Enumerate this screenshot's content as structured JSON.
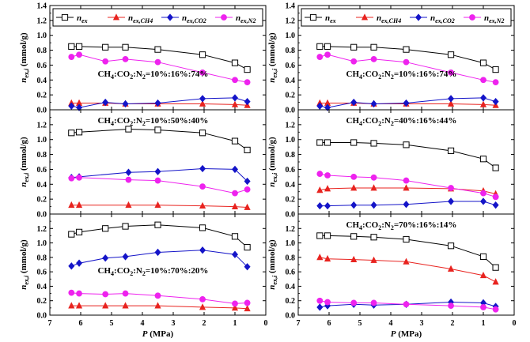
{
  "colors": {
    "total": "#000000",
    "ch4": "#e8231f",
    "co2": "#1414c8",
    "n2": "#ee22ee"
  },
  "legend": [
    {
      "key": "total",
      "base": "n",
      "sub": "ex",
      "marker": "square"
    },
    {
      "key": "ch4",
      "base": "n",
      "sub": "ex,CH4",
      "marker": "triangle"
    },
    {
      "key": "co2",
      "base": "n",
      "sub": "ex,CO2",
      "marker": "diamond"
    },
    {
      "key": "n2",
      "base": "n",
      "sub": "ex,N2",
      "marker": "circle"
    }
  ],
  "axis_labels": {
    "x_base": "P",
    "x_unit": " (MPa)",
    "y_base": "n",
    "y_sub": "ex,",
    "y_sub_i": "i",
    "y_unit": " (mmol/g)"
  },
  "chart_data": [
    {
      "type": "line",
      "column": 0,
      "row": 0,
      "annotation": "CH4:CO2:N2=10%:16%:74%",
      "xlim": [
        7,
        0
      ],
      "ylim": [
        0,
        1.4
      ],
      "xticks": [
        7,
        6,
        5,
        4,
        3,
        2,
        1,
        0
      ],
      "yticks": [
        0.0,
        0.2,
        0.4,
        0.6,
        0.8,
        1.0,
        1.2,
        1.4
      ],
      "x": [
        6.3,
        6.05,
        5.2,
        4.55,
        3.5,
        2.05,
        1.0,
        0.6
      ],
      "series": [
        {
          "key": "total",
          "values": [
            0.85,
            0.85,
            0.84,
            0.84,
            0.81,
            0.74,
            0.63,
            0.54
          ]
        },
        {
          "key": "ch4",
          "values": [
            0.09,
            0.09,
            0.09,
            0.08,
            0.08,
            0.08,
            0.07,
            0.06
          ]
        },
        {
          "key": "co2",
          "values": [
            0.05,
            0.03,
            0.1,
            0.08,
            0.09,
            0.15,
            0.16,
            0.11
          ]
        },
        {
          "key": "n2",
          "values": [
            0.71,
            0.74,
            0.65,
            0.68,
            0.64,
            0.5,
            0.4,
            0.37
          ]
        }
      ]
    },
    {
      "type": "line",
      "column": 0,
      "row": 1,
      "annotation": "CH4:CO2:N2=10%:50%:40%",
      "xlim": [
        7,
        0
      ],
      "ylim": [
        0,
        1.4
      ],
      "xticks": [
        7,
        6,
        5,
        4,
        3,
        2,
        1,
        0
      ],
      "yticks": [
        0.0,
        0.2,
        0.4,
        0.6,
        0.8,
        1.0,
        1.2
      ],
      "x": [
        6.3,
        6.05,
        4.45,
        3.5,
        2.05,
        1.0,
        0.6
      ],
      "series": [
        {
          "key": "total",
          "values": [
            1.09,
            1.1,
            1.14,
            1.13,
            1.09,
            0.98,
            0.86
          ]
        },
        {
          "key": "ch4",
          "values": [
            0.12,
            0.12,
            0.12,
            0.12,
            0.11,
            0.1,
            0.09
          ]
        },
        {
          "key": "co2",
          "values": [
            0.49,
            0.5,
            0.56,
            0.57,
            0.61,
            0.6,
            0.44
          ]
        },
        {
          "key": "n2",
          "values": [
            0.48,
            0.49,
            0.46,
            0.45,
            0.37,
            0.28,
            0.33
          ]
        }
      ]
    },
    {
      "type": "line",
      "column": 0,
      "row": 2,
      "annotation": "CH4:CO2:N2=10%:70%:20%",
      "xlim": [
        7,
        0
      ],
      "ylim": [
        0,
        1.4
      ],
      "xticks": [
        7,
        6,
        5,
        4,
        3,
        2,
        1,
        0
      ],
      "yticks": [
        0.0,
        0.2,
        0.4,
        0.6,
        0.8,
        1.0,
        1.2
      ],
      "x": [
        6.3,
        6.05,
        5.2,
        4.55,
        3.5,
        2.05,
        1.0,
        0.6
      ],
      "series": [
        {
          "key": "total",
          "values": [
            1.12,
            1.15,
            1.2,
            1.23,
            1.25,
            1.21,
            1.09,
            0.94
          ]
        },
        {
          "key": "ch4",
          "values": [
            0.13,
            0.13,
            0.13,
            0.13,
            0.13,
            0.11,
            0.1,
            0.09
          ]
        },
        {
          "key": "co2",
          "values": [
            0.68,
            0.72,
            0.79,
            0.81,
            0.87,
            0.9,
            0.84,
            0.67
          ]
        },
        {
          "key": "n2",
          "values": [
            0.31,
            0.3,
            0.29,
            0.3,
            0.27,
            0.22,
            0.16,
            0.17
          ]
        }
      ]
    },
    {
      "type": "line",
      "column": 1,
      "row": 0,
      "annotation": "CH4:CO2:N2=10%:16%:74%",
      "xlim": [
        7,
        0
      ],
      "ylim": [
        0,
        1.4
      ],
      "xticks": [
        7,
        6,
        5,
        4,
        3,
        2,
        1,
        0
      ],
      "yticks": [
        0.0,
        0.2,
        0.4,
        0.6,
        0.8,
        1.0,
        1.2,
        1.4
      ],
      "x": [
        6.3,
        6.05,
        5.2,
        4.55,
        3.5,
        2.05,
        1.0,
        0.6
      ],
      "series": [
        {
          "key": "total",
          "values": [
            0.85,
            0.85,
            0.84,
            0.84,
            0.81,
            0.74,
            0.63,
            0.54
          ]
        },
        {
          "key": "ch4",
          "values": [
            0.09,
            0.09,
            0.09,
            0.08,
            0.08,
            0.08,
            0.07,
            0.06
          ]
        },
        {
          "key": "co2",
          "values": [
            0.05,
            0.03,
            0.1,
            0.08,
            0.09,
            0.15,
            0.16,
            0.11
          ]
        },
        {
          "key": "n2",
          "values": [
            0.71,
            0.74,
            0.65,
            0.68,
            0.64,
            0.5,
            0.4,
            0.37
          ]
        }
      ]
    },
    {
      "type": "line",
      "column": 1,
      "row": 1,
      "annotation": "CH4:CO2:N2=40%:16%:44%",
      "xlim": [
        7,
        0
      ],
      "ylim": [
        0,
        1.4
      ],
      "xticks": [
        7,
        6,
        5,
        4,
        3,
        2,
        1,
        0
      ],
      "yticks": [
        0.0,
        0.2,
        0.4,
        0.6,
        0.8,
        1.0,
        1.2
      ],
      "x": [
        6.3,
        6.05,
        5.2,
        4.55,
        3.5,
        2.05,
        1.0,
        0.6
      ],
      "series": [
        {
          "key": "total",
          "values": [
            0.96,
            0.96,
            0.96,
            0.95,
            0.93,
            0.85,
            0.74,
            0.62
          ]
        },
        {
          "key": "ch4",
          "values": [
            0.32,
            0.34,
            0.35,
            0.35,
            0.35,
            0.34,
            0.31,
            0.27
          ]
        },
        {
          "key": "co2",
          "values": [
            0.11,
            0.11,
            0.12,
            0.12,
            0.13,
            0.17,
            0.17,
            0.12
          ]
        },
        {
          "key": "n2",
          "values": [
            0.54,
            0.52,
            0.5,
            0.49,
            0.45,
            0.35,
            0.28,
            0.23
          ]
        }
      ]
    },
    {
      "type": "line",
      "column": 1,
      "row": 2,
      "annotation": "CH4:CO2:N2=70%:16%:14%",
      "xlim": [
        7,
        0
      ],
      "ylim": [
        0,
        1.4
      ],
      "xticks": [
        7,
        6,
        5,
        4,
        3,
        2,
        1,
        0
      ],
      "yticks": [
        0.0,
        0.2,
        0.4,
        0.6,
        0.8,
        1.0,
        1.2
      ],
      "x": [
        6.3,
        6.05,
        5.2,
        4.55,
        3.5,
        2.05,
        1.0,
        0.6
      ],
      "series": [
        {
          "key": "total",
          "values": [
            1.1,
            1.1,
            1.09,
            1.08,
            1.05,
            0.96,
            0.81,
            0.66
          ]
        },
        {
          "key": "ch4",
          "values": [
            0.8,
            0.78,
            0.77,
            0.76,
            0.74,
            0.64,
            0.55,
            0.46
          ]
        },
        {
          "key": "co2",
          "values": [
            0.11,
            0.13,
            0.15,
            0.14,
            0.15,
            0.18,
            0.17,
            0.12
          ]
        },
        {
          "key": "n2",
          "values": [
            0.2,
            0.18,
            0.17,
            0.17,
            0.15,
            0.13,
            0.11,
            0.08
          ]
        }
      ]
    }
  ]
}
